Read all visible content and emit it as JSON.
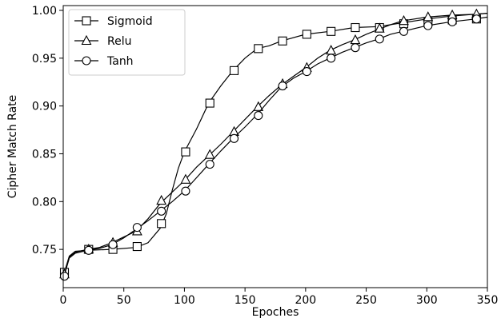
{
  "chart_data": {
    "type": "line",
    "xlabel": "Epoches",
    "ylabel": "Cipher Match Rate",
    "xlim": [
      0,
      350
    ],
    "ylim": [
      0.71,
      1.005
    ],
    "x_ticks": [
      "0",
      "50",
      "100",
      "150",
      "200",
      "250",
      "300",
      "350"
    ],
    "y_ticks": [
      "0.75",
      "0.80",
      "0.85",
      "0.90",
      "0.95",
      "1.00"
    ],
    "grid": false,
    "legend_position": "top-left",
    "series": [
      {
        "name": "Sigmoid",
        "marker": "square",
        "markers": [
          [
            1,
            0.726
          ],
          [
            21,
            0.75
          ],
          [
            41,
            0.75
          ],
          [
            61,
            0.753
          ],
          [
            81,
            0.777
          ],
          [
            101,
            0.852
          ],
          [
            121,
            0.903
          ],
          [
            141,
            0.937
          ],
          [
            161,
            0.96
          ],
          [
            181,
            0.968
          ],
          [
            201,
            0.975
          ],
          [
            221,
            0.978
          ],
          [
            241,
            0.982
          ],
          [
            261,
            0.982
          ],
          [
            281,
            0.986
          ],
          [
            301,
            0.988
          ],
          [
            321,
            0.99
          ],
          [
            341,
            0.991
          ]
        ],
        "curve": [
          [
            0,
            0.722
          ],
          [
            5,
            0.743
          ],
          [
            10,
            0.748
          ],
          [
            20,
            0.749
          ],
          [
            40,
            0.75
          ],
          [
            60,
            0.752
          ],
          [
            70,
            0.757
          ],
          [
            80,
            0.772
          ],
          [
            85,
            0.787
          ],
          [
            90,
            0.812
          ],
          [
            95,
            0.835
          ],
          [
            100,
            0.852
          ],
          [
            110,
            0.876
          ],
          [
            120,
            0.903
          ],
          [
            130,
            0.921
          ],
          [
            140,
            0.937
          ],
          [
            150,
            0.95
          ],
          [
            160,
            0.96
          ],
          [
            170,
            0.963
          ],
          [
            180,
            0.968
          ],
          [
            200,
            0.975
          ],
          [
            220,
            0.978
          ],
          [
            240,
            0.982
          ],
          [
            260,
            0.983
          ],
          [
            280,
            0.987
          ],
          [
            300,
            0.991
          ],
          [
            320,
            0.994
          ],
          [
            340,
            0.996
          ],
          [
            350,
            0.997
          ]
        ]
      },
      {
        "name": "Relu",
        "marker": "triangle",
        "markers": [
          [
            1,
            0.724
          ],
          [
            21,
            0.75
          ],
          [
            41,
            0.757
          ],
          [
            61,
            0.769
          ],
          [
            81,
            0.801
          ],
          [
            101,
            0.823
          ],
          [
            121,
            0.849
          ],
          [
            141,
            0.873
          ],
          [
            161,
            0.899
          ],
          [
            181,
            0.923
          ],
          [
            201,
            0.94
          ],
          [
            221,
            0.958
          ],
          [
            241,
            0.969
          ],
          [
            261,
            0.981
          ],
          [
            281,
            0.989
          ],
          [
            301,
            0.993
          ],
          [
            321,
            0.995
          ],
          [
            341,
            0.996
          ]
        ],
        "curve": [
          [
            0,
            0.72
          ],
          [
            5,
            0.742
          ],
          [
            10,
            0.747
          ],
          [
            20,
            0.75
          ],
          [
            30,
            0.752
          ],
          [
            40,
            0.757
          ],
          [
            50,
            0.763
          ],
          [
            60,
            0.769
          ],
          [
            70,
            0.782
          ],
          [
            80,
            0.798
          ],
          [
            90,
            0.81
          ],
          [
            100,
            0.822
          ],
          [
            110,
            0.836
          ],
          [
            120,
            0.848
          ],
          [
            130,
            0.86
          ],
          [
            140,
            0.873
          ],
          [
            150,
            0.886
          ],
          [
            160,
            0.899
          ],
          [
            170,
            0.911
          ],
          [
            180,
            0.922
          ],
          [
            190,
            0.931
          ],
          [
            200,
            0.94
          ],
          [
            210,
            0.95
          ],
          [
            220,
            0.958
          ],
          [
            230,
            0.964
          ],
          [
            240,
            0.969
          ],
          [
            250,
            0.975
          ],
          [
            260,
            0.98
          ],
          [
            270,
            0.985
          ],
          [
            280,
            0.989
          ],
          [
            300,
            0.993
          ],
          [
            320,
            0.995
          ],
          [
            340,
            0.996
          ],
          [
            350,
            0.997
          ]
        ]
      },
      {
        "name": "Tanh",
        "marker": "circle",
        "markers": [
          [
            1,
            0.722
          ],
          [
            21,
            0.749
          ],
          [
            41,
            0.755
          ],
          [
            61,
            0.773
          ],
          [
            81,
            0.79
          ],
          [
            101,
            0.811
          ],
          [
            121,
            0.839
          ],
          [
            141,
            0.866
          ],
          [
            161,
            0.89
          ],
          [
            181,
            0.921
          ],
          [
            201,
            0.936
          ],
          [
            221,
            0.95
          ],
          [
            241,
            0.961
          ],
          [
            261,
            0.97
          ],
          [
            281,
            0.978
          ],
          [
            301,
            0.984
          ],
          [
            321,
            0.988
          ],
          [
            341,
            0.991
          ]
        ],
        "curve": [
          [
            0,
            0.719
          ],
          [
            5,
            0.741
          ],
          [
            10,
            0.746
          ],
          [
            20,
            0.749
          ],
          [
            30,
            0.751
          ],
          [
            40,
            0.755
          ],
          [
            50,
            0.762
          ],
          [
            60,
            0.771
          ],
          [
            70,
            0.78
          ],
          [
            80,
            0.79
          ],
          [
            90,
            0.8
          ],
          [
            100,
            0.811
          ],
          [
            110,
            0.825
          ],
          [
            120,
            0.839
          ],
          [
            130,
            0.853
          ],
          [
            140,
            0.866
          ],
          [
            150,
            0.878
          ],
          [
            160,
            0.891
          ],
          [
            170,
            0.906
          ],
          [
            180,
            0.92
          ],
          [
            190,
            0.929
          ],
          [
            200,
            0.936
          ],
          [
            210,
            0.944
          ],
          [
            220,
            0.95
          ],
          [
            230,
            0.956
          ],
          [
            240,
            0.961
          ],
          [
            250,
            0.966
          ],
          [
            260,
            0.97
          ],
          [
            270,
            0.975
          ],
          [
            280,
            0.978
          ],
          [
            300,
            0.984
          ],
          [
            320,
            0.988
          ],
          [
            340,
            0.991
          ],
          [
            350,
            0.993
          ]
        ]
      }
    ]
  }
}
